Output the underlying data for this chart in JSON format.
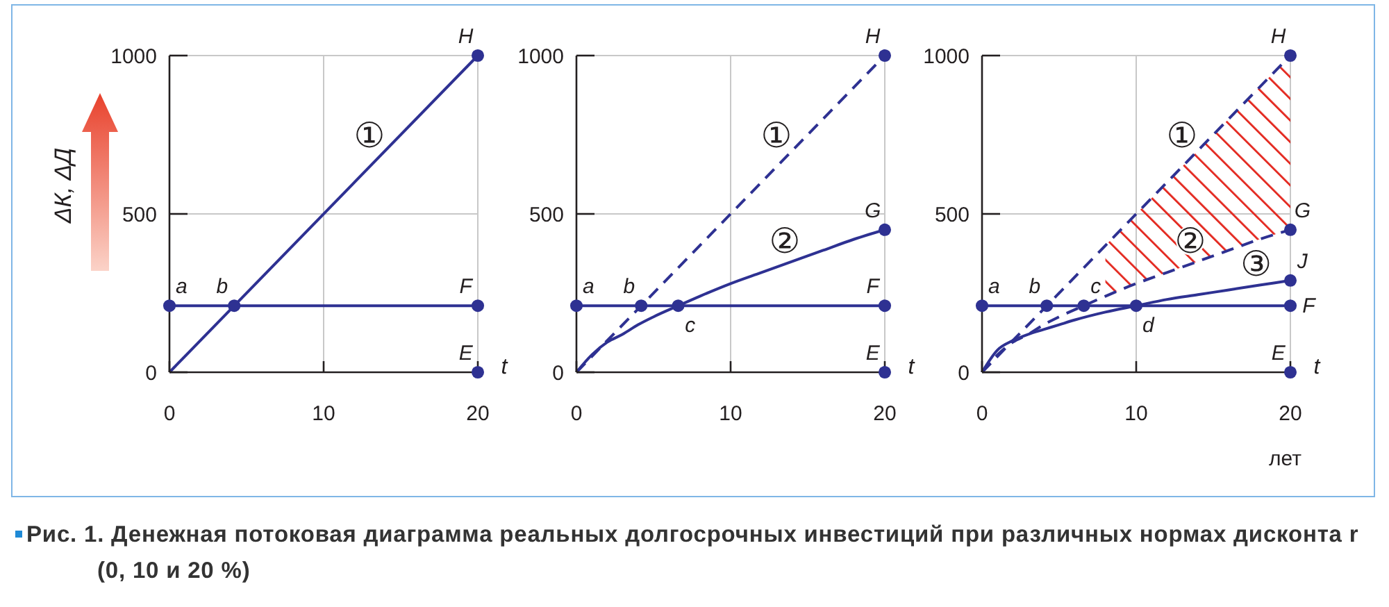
{
  "chart_data": [
    {
      "type": "line",
      "ylabel": "ΔК, ΔД",
      "xlabel": "t",
      "xlim": [
        0,
        20
      ],
      "ylim": [
        0,
        1000
      ],
      "xticks": [
        0,
        10,
        20
      ],
      "yticks": [
        0,
        500,
        1000
      ],
      "grid": true,
      "marker": "none",
      "series": [
        {
          "name": "①",
          "x": [
            0,
            20
          ],
          "values": [
            0,
            1000
          ],
          "color": "#2e3192",
          "line_style": "solid"
        },
        {
          "x": [
            0,
            20
          ],
          "values": [
            210,
            210
          ],
          "color": "#2e3192",
          "line_style": "solid"
        },
        {
          "type": "scatter",
          "x": [
            0,
            4.2,
            20,
            20,
            20
          ],
          "values": [
            210,
            210,
            210,
            1000,
            0
          ],
          "color": "#2e3192",
          "marker": "circle"
        }
      ],
      "annotations": [
        {
          "text": "a",
          "x": 0,
          "y": 210
        },
        {
          "text": "b",
          "x": 4.2,
          "y": 210
        },
        {
          "text": "F",
          "x": 20,
          "y": 210
        },
        {
          "text": "H",
          "x": 20,
          "y": 1000
        },
        {
          "text": "E",
          "x": 20,
          "y": 0
        }
      ]
    },
    {
      "type": "line",
      "xlabel": "t",
      "xlim": [
        0,
        20
      ],
      "ylim": [
        0,
        1000
      ],
      "xticks": [
        0,
        10,
        20
      ],
      "yticks": [
        0,
        500,
        1000
      ],
      "grid": true,
      "marker": "none",
      "series": [
        {
          "name": "①",
          "x": [
            0,
            20
          ],
          "values": [
            0,
            1000
          ],
          "color": "#2e3192",
          "line_style": "dashed"
        },
        {
          "name": "②",
          "x": [
            0,
            1,
            2,
            3,
            4,
            5,
            6.6,
            8,
            10,
            12,
            14,
            16,
            18,
            20
          ],
          "values": [
            0,
            55,
            95,
            120,
            150,
            175,
            210,
            240,
            280,
            315,
            350,
            385,
            420,
            450
          ],
          "color": "#2e3192",
          "line_style": "solid"
        },
        {
          "x": [
            0,
            20
          ],
          "values": [
            210,
            210
          ],
          "color": "#2e3192",
          "line_style": "solid"
        },
        {
          "type": "scatter",
          "x": [
            0,
            4.2,
            6.6,
            20,
            20,
            20,
            20
          ],
          "values": [
            210,
            210,
            210,
            210,
            450,
            1000,
            0
          ],
          "color": "#2e3192",
          "marker": "circle"
        }
      ],
      "annotations": [
        {
          "text": "a",
          "x": 0,
          "y": 210
        },
        {
          "text": "b",
          "x": 4.2,
          "y": 210
        },
        {
          "text": "c",
          "x": 6.6,
          "y": 210
        },
        {
          "text": "F",
          "x": 20,
          "y": 210
        },
        {
          "text": "G",
          "x": 20,
          "y": 450
        },
        {
          "text": "H",
          "x": 20,
          "y": 1000
        },
        {
          "text": "E",
          "x": 20,
          "y": 0
        }
      ]
    },
    {
      "type": "line",
      "xlabel": "t",
      "xlim": [
        0,
        20
      ],
      "ylim": [
        0,
        1000
      ],
      "xticks": [
        0,
        10,
        20
      ],
      "yticks": [
        0,
        500,
        1000
      ],
      "grid": true,
      "marker": "none",
      "series": [
        {
          "name": "①",
          "x": [
            0,
            20
          ],
          "values": [
            0,
            1000
          ],
          "color": "#2e3192",
          "line_style": "dashed"
        },
        {
          "name": "②",
          "x": [
            0,
            1,
            2,
            3,
            4,
            5,
            6.6,
            8,
            10,
            12,
            14,
            16,
            18,
            20
          ],
          "values": [
            0,
            55,
            95,
            120,
            150,
            175,
            210,
            240,
            280,
            315,
            350,
            385,
            420,
            450
          ],
          "lower": [
            null,
            null,
            null,
            null,
            null,
            null,
            null,
            240,
            280,
            315,
            350,
            385,
            420,
            450
          ],
          "upper": [
            null,
            null,
            null,
            null,
            null,
            null,
            null,
            400,
            500,
            600,
            700,
            800,
            900,
            1000
          ],
          "color": "#2e3192",
          "line_style": "dashed"
        },
        {
          "name": "③",
          "x": [
            0,
            1,
            2,
            3,
            4,
            5,
            6,
            8,
            10,
            12,
            14,
            16,
            18,
            20
          ],
          "values": [
            0,
            70,
            100,
            120,
            135,
            150,
            165,
            190,
            210,
            230,
            245,
            260,
            275,
            290
          ],
          "color": "#2e3192",
          "line_style": "solid"
        },
        {
          "x": [
            0,
            20
          ],
          "values": [
            210,
            210
          ],
          "color": "#2e3192",
          "line_style": "solid"
        },
        {
          "type": "scatter",
          "x": [
            0,
            4.2,
            6.6,
            10,
            20,
            20,
            20,
            20,
            20
          ],
          "values": [
            210,
            210,
            210,
            210,
            210,
            290,
            450,
            1000,
            0
          ],
          "color": "#2e3192",
          "marker": "circle"
        }
      ],
      "annotations": [
        {
          "text": "a",
          "x": 0,
          "y": 210
        },
        {
          "text": "b",
          "x": 4.2,
          "y": 210
        },
        {
          "text": "c",
          "x": 6.6,
          "y": 210
        },
        {
          "text": "d",
          "x": 10,
          "y": 210
        },
        {
          "text": "F",
          "x": 20,
          "y": 210
        },
        {
          "text": "J",
          "x": 20,
          "y": 290
        },
        {
          "text": "G",
          "x": 20,
          "y": 450
        },
        {
          "text": "H",
          "x": 20,
          "y": 1000
        },
        {
          "text": "E",
          "x": 20,
          "y": 0
        },
        "лет"
      ]
    },
    {
      "type": "other",
      "annotations": [
        "Рис. 1. Денежная потоковая диаграмма реальных долгосрочных инвестиций при различных нормах дисконта r (0, 10 и 20 %)"
      ]
    }
  ]
}
